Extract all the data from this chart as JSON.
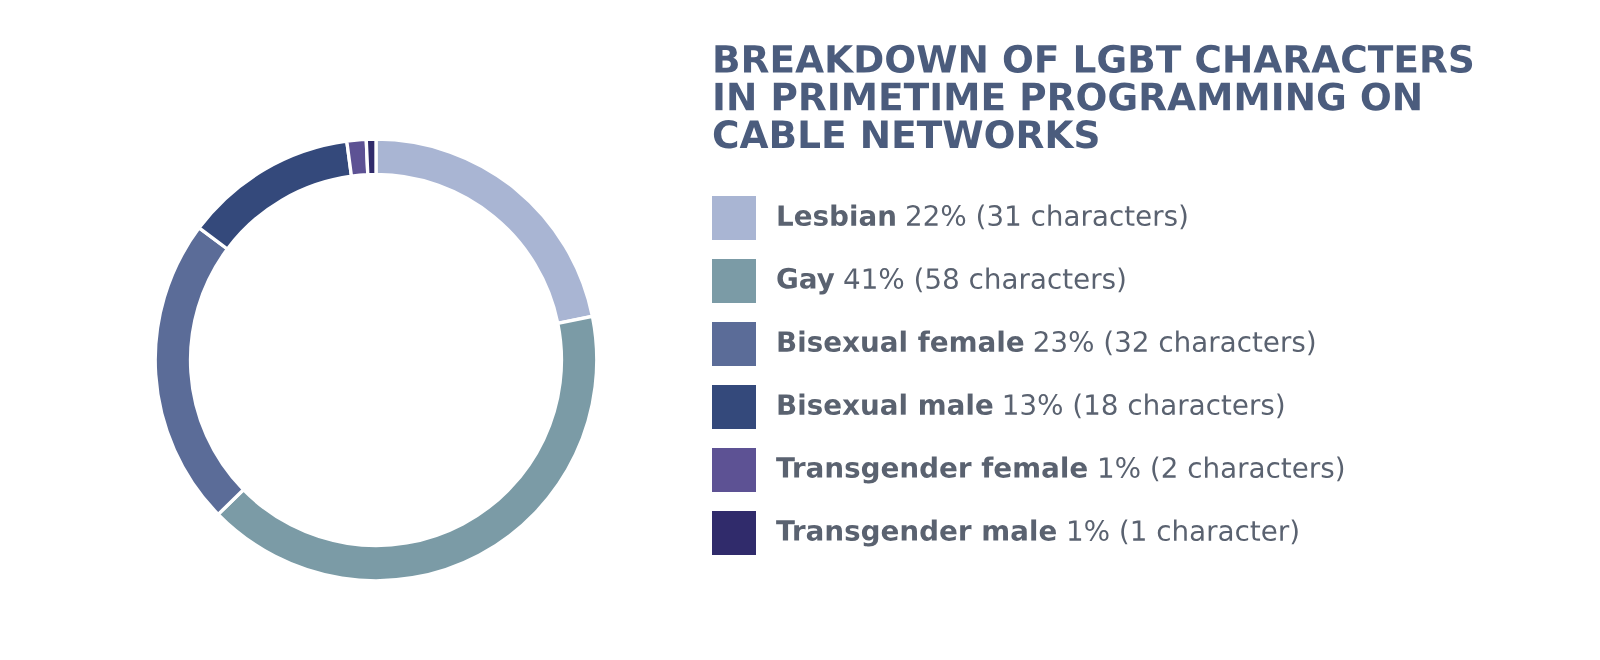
{
  "chart_data": {
    "type": "donut",
    "title": "BREAKDOWN OF LGBT CHARACTERS\nIN PRIMETIME PROGRAMMING ON\nCABLE NETWORKS",
    "categories": [
      "Lesbian",
      "Gay",
      "Bisexual female",
      "Bisexual male",
      "Transgender female",
      "Transgender male"
    ],
    "values": [
      31,
      58,
      32,
      18,
      2,
      1
    ],
    "value_labels": [
      "22% (31 characters)",
      "41% (58 characters)",
      "23% (32 characters)",
      "13% (18 characters)",
      "1% (2 characters)",
      "1% (1 character)"
    ],
    "colors": [
      "#a9b5d3",
      "#7b9ba6",
      "#5b6c98",
      "#34497b",
      "#5d5294",
      "#302b6b"
    ],
    "legend": "right"
  }
}
